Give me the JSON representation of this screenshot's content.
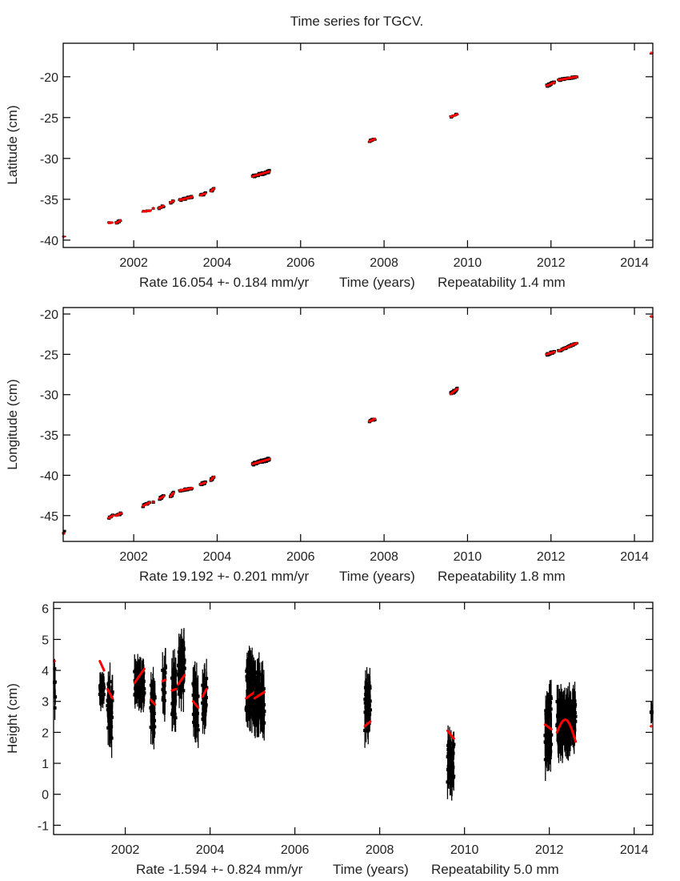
{
  "figure": {
    "title": "Time series for TGCV.",
    "background_color": "#ffffff",
    "data_color": "#000000",
    "model_color": "#ff0000"
  },
  "chart_data": [
    {
      "type": "scatter",
      "title": "Time series for TGCV.",
      "ylabel": "Latitude (cm)",
      "xlabel_parts": [
        "Rate 16.054 +- 0.184 mm/yr",
        "Time (years)",
        "Repeatability 1.4 mm"
      ],
      "xlim": [
        2000.31,
        2014.44
      ],
      "ylim": [
        -40.9,
        -15.9
      ],
      "xticks": [
        2002,
        2004,
        2006,
        2008,
        2010,
        2012,
        2014
      ],
      "yticks": [
        -40,
        -35,
        -30,
        -25,
        -20
      ],
      "grid": false,
      "rate_mm_per_yr": 16.054,
      "rate_sigma_mm_per_yr": 0.184,
      "repeatability_mm": 1.4,
      "clusters": [
        {
          "t": [
            2000.32,
            2000.34
          ],
          "y": [
            -39.6,
            -39.5
          ],
          "sigma": 0.15
        },
        {
          "t": [
            2001.4,
            2001.48
          ],
          "y": [
            -37.9,
            -37.85
          ],
          "sigma": 0.1
        },
        {
          "t": [
            2001.58,
            2001.68
          ],
          "y": [
            -37.9,
            -37.6
          ],
          "sigma": 0.25
        },
        {
          "t": [
            2002.22,
            2002.4
          ],
          "y": [
            -36.5,
            -36.4
          ],
          "sigma": 0.1
        },
        {
          "t": [
            2002.47,
            2002.47
          ],
          "y": [
            -36.1,
            -36.1
          ],
          "sigma": 0.1
        },
        {
          "t": [
            2002.6,
            2002.72
          ],
          "y": [
            -36.1,
            -35.8
          ],
          "sigma": 0.25
        },
        {
          "t": [
            2002.88,
            2002.95
          ],
          "y": [
            -35.4,
            -35.2
          ],
          "sigma": 0.25
        },
        {
          "t": [
            2003.1,
            2003.4
          ],
          "y": [
            -35.1,
            -34.7
          ],
          "sigma": 0.25
        },
        {
          "t": [
            2003.6,
            2003.72
          ],
          "y": [
            -34.5,
            -34.3
          ],
          "sigma": 0.25
        },
        {
          "t": [
            2003.85,
            2003.92
          ],
          "y": [
            -34.0,
            -33.7
          ],
          "sigma": 0.3
        },
        {
          "t": [
            2004.85,
            2005.25
          ],
          "y": [
            -32.2,
            -31.6
          ],
          "sigma": 0.35
        },
        {
          "t": [
            2007.65,
            2007.78
          ],
          "y": [
            -27.9,
            -27.6
          ],
          "sigma": 0.25
        },
        {
          "t": [
            2009.6,
            2009.75
          ],
          "y": [
            -24.9,
            -24.6
          ],
          "sigma": 0.2
        },
        {
          "t": [
            2011.9,
            2012.08
          ],
          "y": [
            -21.1,
            -20.7
          ],
          "sigma": 0.3
        },
        {
          "t": [
            2012.18,
            2012.62
          ],
          "y": [
            -20.4,
            -20.0
          ],
          "sigma": 0.25
        },
        {
          "t": [
            2014.4,
            2014.42
          ],
          "y": [
            -17.1,
            -17.1
          ],
          "sigma": 0.1
        }
      ]
    },
    {
      "type": "scatter",
      "ylabel": "Longitude (cm)",
      "xlabel_parts": [
        "Rate 19.192 +- 0.201 mm/yr",
        "Time (years)",
        "Repeatability 1.8 mm"
      ],
      "xlim": [
        2000.31,
        2014.44
      ],
      "ylim": [
        -48.2,
        -19.2
      ],
      "xticks": [
        2002,
        2004,
        2006,
        2008,
        2010,
        2012,
        2014
      ],
      "yticks": [
        -45,
        -40,
        -35,
        -30,
        -25,
        -20
      ],
      "grid": false,
      "rate_mm_per_yr": 19.192,
      "rate_sigma_mm_per_yr": 0.201,
      "repeatability_mm": 1.8,
      "clusters": [
        {
          "t": [
            2000.32,
            2000.34
          ],
          "y": [
            -47.2,
            -47.0
          ],
          "sigma": 0.3
        },
        {
          "t": [
            2001.4,
            2001.5
          ],
          "y": [
            -45.3,
            -45.0
          ],
          "sigma": 0.2
        },
        {
          "t": [
            2001.58,
            2001.7
          ],
          "y": [
            -45.0,
            -44.7
          ],
          "sigma": 0.3
        },
        {
          "t": [
            2002.22,
            2002.38
          ],
          "y": [
            -43.8,
            -43.4
          ],
          "sigma": 0.25
        },
        {
          "t": [
            2002.47,
            2002.47
          ],
          "y": [
            -43.3,
            -43.3
          ],
          "sigma": 0.2
        },
        {
          "t": [
            2002.62,
            2002.72
          ],
          "y": [
            -42.9,
            -42.6
          ],
          "sigma": 0.3
        },
        {
          "t": [
            2002.88,
            2002.95
          ],
          "y": [
            -42.6,
            -42.2
          ],
          "sigma": 0.35
        },
        {
          "t": [
            2003.1,
            2003.4
          ],
          "y": [
            -41.9,
            -41.6
          ],
          "sigma": 0.25
        },
        {
          "t": [
            2003.6,
            2003.72
          ],
          "y": [
            -41.1,
            -40.9
          ],
          "sigma": 0.3
        },
        {
          "t": [
            2003.85,
            2003.92
          ],
          "y": [
            -40.6,
            -40.2
          ],
          "sigma": 0.35
        },
        {
          "t": [
            2004.85,
            2005.25
          ],
          "y": [
            -38.6,
            -38.0
          ],
          "sigma": 0.4
        },
        {
          "t": [
            2007.65,
            2007.78
          ],
          "y": [
            -33.3,
            -33.0
          ],
          "sigma": 0.3
        },
        {
          "t": [
            2009.6,
            2009.75
          ],
          "y": [
            -29.9,
            -29.3
          ],
          "sigma": 0.4
        },
        {
          "t": [
            2011.9,
            2012.08
          ],
          "y": [
            -25.0,
            -24.7
          ],
          "sigma": 0.3
        },
        {
          "t": [
            2012.18,
            2012.62
          ],
          "y": [
            -24.6,
            -23.6
          ],
          "sigma": 0.25
        },
        {
          "t": [
            2014.4,
            2014.42
          ],
          "y": [
            -20.3,
            -20.3
          ],
          "sigma": 0.1
        }
      ]
    },
    {
      "type": "scatter",
      "ylabel": "Height (cm)",
      "xlabel_parts": [
        "Rate -1.594 +- 0.824 mm/yr",
        "Time (years)",
        "Repeatability 5.0 mm"
      ],
      "xlim": [
        2000.31,
        2014.44
      ],
      "ylim": [
        -1.3,
        6.2
      ],
      "xticks": [
        2002,
        2004,
        2006,
        2008,
        2010,
        2012,
        2014
      ],
      "yticks": [
        -1,
        0,
        1,
        2,
        3,
        4,
        5,
        6
      ],
      "grid": false,
      "rate_mm_per_yr": -1.594,
      "rate_sigma_mm_per_yr": 0.824,
      "repeatability_mm": 5.0,
      "clusters": [
        {
          "t": [
            2000.33,
            2000.35
          ],
          "y": [
            4.0,
            2.8
          ],
          "sigma": 0.35,
          "spread": 0.8,
          "model": [
            4.3,
            4.3
          ]
        },
        {
          "t": [
            2001.4,
            2001.5
          ],
          "y": [
            3.3,
            3.4
          ],
          "sigma": 0.35,
          "spread": 0.2,
          "model": [
            4.3,
            4.0
          ]
        },
        {
          "t": [
            2001.58,
            2001.7
          ],
          "y": [
            3.0,
            2.6
          ],
          "sigma": 0.5,
          "spread": 0.9,
          "model": [
            3.4,
            3.1
          ]
        },
        {
          "t": [
            2002.22,
            2002.45
          ],
          "y": [
            3.7,
            3.5
          ],
          "sigma": 0.45,
          "spread": 0.5,
          "model": [
            3.6,
            4.05
          ]
        },
        {
          "t": [
            2002.6,
            2002.7
          ],
          "y": [
            2.9,
            2.7
          ],
          "sigma": 0.5,
          "spread": 0.8,
          "model": [
            3.05,
            2.9
          ]
        },
        {
          "t": [
            2002.88,
            2002.95
          ],
          "y": [
            3.5,
            3.6
          ],
          "sigma": 0.55,
          "spread": 0.6,
          "model": [
            3.65,
            3.7
          ]
        },
        {
          "t": [
            2003.1,
            2003.2
          ],
          "y": [
            3.3,
            3.2
          ],
          "sigma": 0.55,
          "spread": 0.8,
          "model": [
            3.35,
            3.4
          ]
        },
        {
          "t": [
            2003.25,
            2003.4
          ],
          "y": [
            3.9,
            4.2
          ],
          "sigma": 0.55,
          "spread": 0.8,
          "model": [
            3.55,
            3.85
          ]
        },
        {
          "t": [
            2003.6,
            2003.72
          ],
          "y": [
            3.0,
            2.8
          ],
          "sigma": 0.55,
          "spread": 0.8,
          "model": [
            3.0,
            2.8
          ]
        },
        {
          "t": [
            2003.82,
            2003.92
          ],
          "y": [
            3.0,
            3.1
          ],
          "sigma": 0.5,
          "spread": 0.7,
          "model": [
            3.15,
            3.4
          ]
        },
        {
          "t": [
            2004.85,
            2005.05
          ],
          "y": [
            3.5,
            3.4
          ],
          "sigma": 0.5,
          "spread": 0.9,
          "model": [
            3.1,
            3.3
          ]
        },
        {
          "t": [
            2005.05,
            2005.28
          ],
          "y": [
            3.2,
            3.1
          ],
          "sigma": 0.5,
          "spread": 0.8,
          "model": [
            3.1,
            3.3
          ]
        },
        {
          "t": [
            2007.65,
            2007.78
          ],
          "y": [
            2.8,
            3.0
          ],
          "sigma": 0.5,
          "spread": 0.8,
          "model": [
            2.2,
            2.35
          ]
        },
        {
          "t": [
            2009.6,
            2009.75
          ],
          "y": [
            1.0,
            1.1
          ],
          "sigma": 0.5,
          "spread": 0.7,
          "model": [
            2.05,
            1.8
          ]
        },
        {
          "t": [
            2011.9,
            2012.05
          ],
          "y": [
            2.0,
            2.3
          ],
          "sigma": 0.55,
          "spread": 0.9,
          "model": [
            2.25,
            2.1
          ]
        },
        {
          "t": [
            2012.18,
            2012.62
          ],
          "y": [
            2.3,
            2.4
          ],
          "sigma": 0.5,
          "spread": 0.7,
          "model": [
            2.0,
            1.7
          ]
        },
        {
          "t": [
            2014.4,
            2014.42
          ],
          "y": [
            2.65,
            2.65
          ],
          "sigma": 0.3,
          "spread": 0.0,
          "model": [
            2.2,
            2.2
          ]
        }
      ]
    }
  ]
}
